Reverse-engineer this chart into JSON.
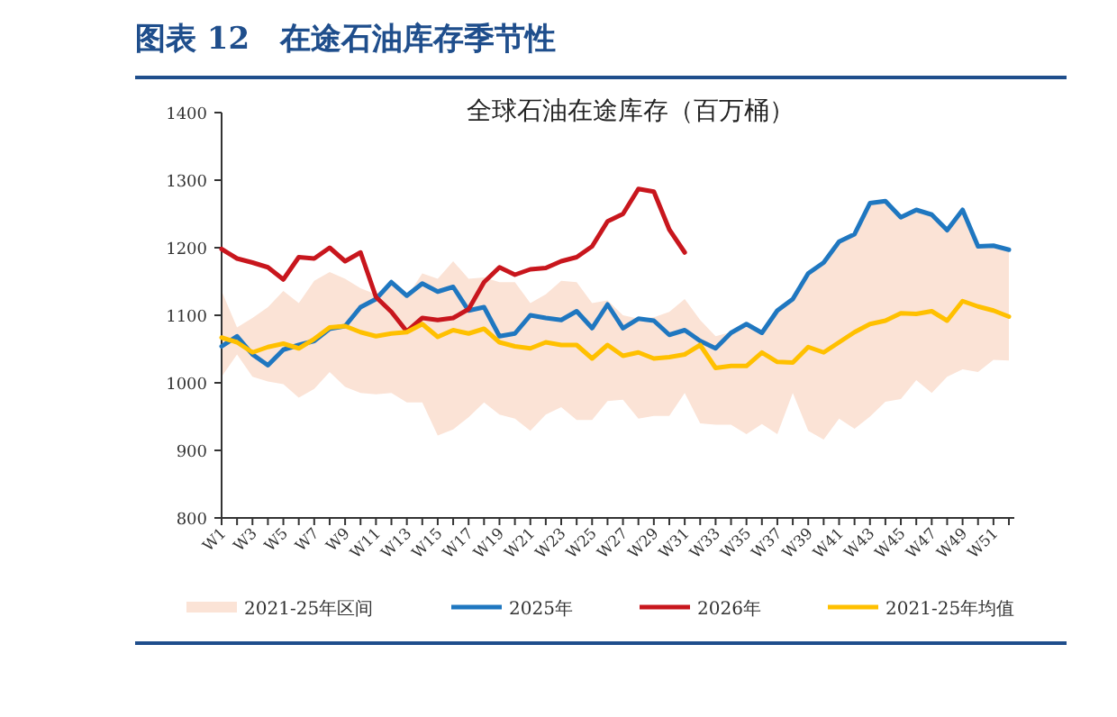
{
  "chart_data": {
    "type": "line",
    "title": "图表 12　在途石油库存季节性",
    "subtitle": "全球石油在途库存（百万桶）",
    "categories": [
      "W1",
      null,
      "W3",
      null,
      "W5",
      null,
      "W7",
      null,
      "W9",
      null,
      "W11",
      null,
      "W13",
      null,
      "W15",
      null,
      "W17",
      null,
      "W19",
      null,
      "W21",
      null,
      "W23",
      null,
      "W25",
      null,
      "W27",
      null,
      "W29",
      null,
      "W31",
      null,
      "W33",
      null,
      "W35",
      null,
      "W37",
      null,
      "W39",
      null,
      "W41",
      null,
      "W43",
      null,
      "W45",
      null,
      "W47",
      null,
      "W49",
      null,
      "W51",
      null
    ],
    "ylim": [
      800,
      1400
    ],
    "yticks": [
      800,
      900,
      1000,
      1100,
      1200,
      1300,
      1400
    ],
    "legend": "bottom",
    "annotations": [
      "2021-25年区间"
    ],
    "series": [
      {
        "name": "2025年",
        "color": "#1f77c0",
        "values": [
          1054,
          1069,
          1042,
          1026,
          1049,
          1056,
          1062,
          1080,
          1084,
          1112,
          1124,
          1149,
          1129,
          1147,
          1135,
          1142,
          1107,
          1112,
          1069,
          1073,
          1100,
          1096,
          1093,
          1106,
          1081,
          1116,
          1081,
          1095,
          1092,
          1071,
          1078,
          1062,
          1051,
          1074,
          1087,
          1074,
          1107,
          1124,
          1162,
          1178,
          1209,
          1220,
          1266,
          1269,
          1245,
          1256,
          1249,
          1226,
          1256,
          1202,
          1203,
          1197
        ]
      },
      {
        "name": "2026年",
        "color": "#c8161d",
        "values": [
          1198,
          1184,
          1178,
          1171,
          1153,
          1186,
          1184,
          1200,
          1180,
          1193,
          1127,
          1105,
          1076,
          1096,
          1093,
          1096,
          1109,
          1149,
          1171,
          1160,
          1168,
          1170,
          1180,
          1186,
          1202,
          1239,
          1250,
          1287,
          1283,
          1227,
          1193,
          null,
          null,
          null,
          null,
          null,
          null,
          null,
          null,
          null,
          null,
          null,
          null,
          null,
          null,
          null,
          null,
          null,
          null,
          null,
          null,
          null
        ]
      },
      {
        "name": "2021-25年均值",
        "color": "#ffc000",
        "values": [
          1067,
          1060,
          1045,
          1053,
          1058,
          1051,
          1065,
          1082,
          1084,
          1075,
          1069,
          1073,
          1075,
          1087,
          1068,
          1078,
          1073,
          1080,
          1060,
          1054,
          1051,
          1060,
          1056,
          1056,
          1036,
          1056,
          1040,
          1045,
          1036,
          1038,
          1042,
          1056,
          1022,
          1025,
          1025,
          1045,
          1031,
          1030,
          1053,
          1045,
          1060,
          1075,
          1087,
          1092,
          1103,
          1102,
          1106,
          1092,
          1121,
          1113,
          1107,
          1098
        ],
        "lower": [
          1009,
          1042,
          1009,
          1002,
          998,
          978,
          991,
          1016,
          994,
          985,
          983,
          985,
          971,
          971,
          922,
          931,
          949,
          971,
          953,
          947,
          929,
          953,
          964,
          945,
          945,
          973,
          975,
          947,
          951,
          951,
          985,
          940,
          938,
          938,
          924,
          939,
          924,
          985,
          929,
          916,
          947,
          932,
          950,
          972,
          976,
          1004,
          985,
          1009,
          1020,
          1016,
          1034,
          1033
        ],
        "upper": [
          1136,
          1082,
          1096,
          1112,
          1136,
          1118,
          1151,
          1164,
          1154,
          1140,
          1131,
          1149,
          1127,
          1162,
          1154,
          1180,
          1154,
          1156,
          1149,
          1149,
          1118,
          1131,
          1151,
          1149,
          1118,
          1122,
          1100,
          1095,
          1097,
          1105,
          1124,
          1093,
          1069,
          1075,
          1087,
          1074,
          1107,
          1124,
          1162,
          1178,
          1209,
          1220,
          1266,
          1269,
          1245,
          1256,
          1249,
          1226,
          1256,
          1202,
          1203,
          1197
        ]
      }
    ]
  }
}
